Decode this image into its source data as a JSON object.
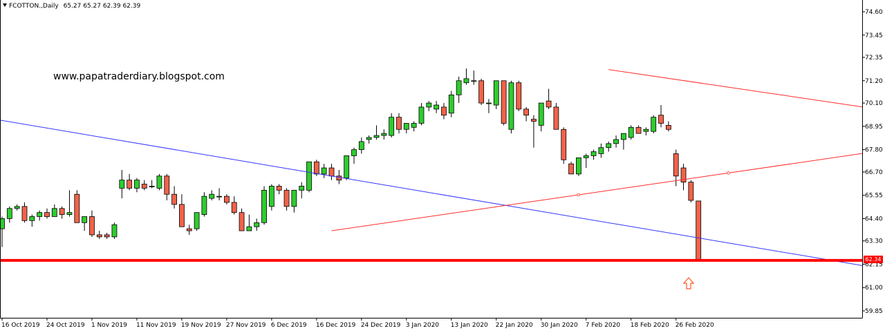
{
  "header": {
    "symbol_label": "FCOTTON.,Daily",
    "ohlc_label": "65.27 65.27 62.39 62.39"
  },
  "watermark": "www.papatraderdiary.blogspot.com",
  "price_tag": "62.34",
  "colors": {
    "bull": "#2ecc2e",
    "bear": "#f0634a",
    "wick": "#000000",
    "support": "#ff0000",
    "downtrend": "#3333ff",
    "triangle": "#ff2a2a",
    "arrow": "#ff5522",
    "axis": "#000000"
  },
  "icons": {
    "menu_indicator": "triangle-down-icon",
    "buy_signal": "up-arrow-icon"
  },
  "chart_data": {
    "type": "candlestick",
    "symbol": "FCOTTON.",
    "timeframe": "Daily",
    "y_ticks": [
      "74.60",
      "73.45",
      "72.35",
      "71.20",
      "70.10",
      "68.95",
      "67.80",
      "66.70",
      "65.55",
      "64.40",
      "63.30",
      "62.15",
      "61.00",
      "59.85"
    ],
    "ylim": [
      59.5,
      75.0
    ],
    "x_ticks": [
      {
        "label": "16 Oct 2019",
        "i": 0
      },
      {
        "label": "24 Oct 2019",
        "i": 6
      },
      {
        "label": "1 Nov 2019",
        "i": 12
      },
      {
        "label": "11 Nov 2019",
        "i": 18
      },
      {
        "label": "19 Nov 2019",
        "i": 24
      },
      {
        "label": "27 Nov 2019",
        "i": 30
      },
      {
        "label": "6 Dec 2019",
        "i": 36
      },
      {
        "label": "16 Dec 2019",
        "i": 42
      },
      {
        "label": "24 Dec 2019",
        "i": 48
      },
      {
        "label": "3 Jan 2020",
        "i": 54
      },
      {
        "label": "13 Jan 2020",
        "i": 60
      },
      {
        "label": "22 Jan 2020",
        "i": 66
      },
      {
        "label": "30 Jan 2020",
        "i": 72
      },
      {
        "label": "7 Feb 2020",
        "i": 78
      },
      {
        "label": "18 Feb 2020",
        "i": 84
      },
      {
        "label": "26 Feb 2020",
        "i": 90
      }
    ],
    "candles": [
      {
        "o": 63.9,
        "h": 64.5,
        "l": 63.0,
        "c": 64.4
      },
      {
        "o": 64.4,
        "h": 65.0,
        "l": 64.2,
        "c": 64.9
      },
      {
        "o": 64.9,
        "h": 65.1,
        "l": 64.8,
        "c": 65.0
      },
      {
        "o": 65.0,
        "h": 65.2,
        "l": 64.2,
        "c": 64.3
      },
      {
        "o": 64.3,
        "h": 64.6,
        "l": 64.0,
        "c": 64.5
      },
      {
        "o": 64.5,
        "h": 64.8,
        "l": 64.3,
        "c": 64.7
      },
      {
        "o": 64.7,
        "h": 64.9,
        "l": 64.4,
        "c": 64.5
      },
      {
        "o": 64.5,
        "h": 65.1,
        "l": 64.5,
        "c": 64.9
      },
      {
        "o": 64.9,
        "h": 65.0,
        "l": 64.4,
        "c": 64.6
      },
      {
        "o": 64.6,
        "h": 65.8,
        "l": 64.5,
        "c": 64.7
      },
      {
        "o": 65.6,
        "h": 65.8,
        "l": 64.2,
        "c": 64.2
      },
      {
        "o": 64.2,
        "h": 64.5,
        "l": 63.8,
        "c": 64.5
      },
      {
        "o": 64.5,
        "h": 64.8,
        "l": 63.5,
        "c": 63.6
      },
      {
        "o": 63.6,
        "h": 63.8,
        "l": 63.4,
        "c": 63.5
      },
      {
        "o": 63.6,
        "h": 63.7,
        "l": 63.4,
        "c": 63.5
      },
      {
        "o": 63.5,
        "h": 64.2,
        "l": 63.4,
        "c": 64.1
      },
      {
        "o": 65.9,
        "h": 66.8,
        "l": 65.4,
        "c": 66.3
      },
      {
        "o": 66.3,
        "h": 66.6,
        "l": 65.8,
        "c": 65.9
      },
      {
        "o": 65.9,
        "h": 66.4,
        "l": 65.7,
        "c": 66.3
      },
      {
        "o": 66.1,
        "h": 66.3,
        "l": 65.8,
        "c": 65.9
      },
      {
        "o": 66.0,
        "h": 66.3,
        "l": 65.9,
        "c": 66.0
      },
      {
        "o": 65.9,
        "h": 66.6,
        "l": 65.8,
        "c": 66.5
      },
      {
        "o": 66.5,
        "h": 66.6,
        "l": 65.3,
        "c": 65.6
      },
      {
        "o": 65.6,
        "h": 66.0,
        "l": 64.9,
        "c": 65.1
      },
      {
        "o": 65.1,
        "h": 65.6,
        "l": 64.0,
        "c": 64.0
      },
      {
        "o": 63.9,
        "h": 64.1,
        "l": 63.6,
        "c": 63.8
      },
      {
        "o": 63.9,
        "h": 64.7,
        "l": 63.8,
        "c": 64.7
      },
      {
        "o": 64.6,
        "h": 65.7,
        "l": 64.5,
        "c": 65.5
      },
      {
        "o": 65.4,
        "h": 65.8,
        "l": 65.3,
        "c": 65.6
      },
      {
        "o": 65.5,
        "h": 65.9,
        "l": 65.3,
        "c": 65.5
      },
      {
        "o": 65.5,
        "h": 65.6,
        "l": 65.1,
        "c": 65.2
      },
      {
        "o": 65.2,
        "h": 65.5,
        "l": 64.6,
        "c": 64.7
      },
      {
        "o": 64.7,
        "h": 64.9,
        "l": 63.8,
        "c": 63.8
      },
      {
        "o": 63.8,
        "h": 64.6,
        "l": 63.8,
        "c": 64.0
      },
      {
        "o": 64.0,
        "h": 64.4,
        "l": 63.8,
        "c": 64.2
      },
      {
        "o": 64.2,
        "h": 66.0,
        "l": 64.1,
        "c": 65.8
      },
      {
        "o": 65.0,
        "h": 66.1,
        "l": 64.8,
        "c": 66.0
      },
      {
        "o": 66.0,
        "h": 66.1,
        "l": 65.6,
        "c": 65.8
      },
      {
        "o": 65.8,
        "h": 65.9,
        "l": 64.8,
        "c": 65.0
      },
      {
        "o": 65.0,
        "h": 65.8,
        "l": 64.7,
        "c": 65.8
      },
      {
        "o": 65.8,
        "h": 66.2,
        "l": 65.4,
        "c": 66.0
      },
      {
        "o": 65.8,
        "h": 67.2,
        "l": 65.7,
        "c": 67.2
      },
      {
        "o": 67.2,
        "h": 67.3,
        "l": 66.5,
        "c": 66.6
      },
      {
        "o": 66.6,
        "h": 67.1,
        "l": 66.4,
        "c": 66.9
      },
      {
        "o": 66.9,
        "h": 67.1,
        "l": 66.3,
        "c": 66.5
      },
      {
        "o": 66.5,
        "h": 66.8,
        "l": 66.1,
        "c": 66.3
      },
      {
        "o": 66.4,
        "h": 67.5,
        "l": 66.3,
        "c": 67.5
      },
      {
        "o": 67.5,
        "h": 67.9,
        "l": 67.1,
        "c": 67.8
      },
      {
        "o": 67.8,
        "h": 68.4,
        "l": 67.6,
        "c": 68.2
      },
      {
        "o": 68.3,
        "h": 68.5,
        "l": 68.1,
        "c": 68.4
      },
      {
        "o": 68.4,
        "h": 69.0,
        "l": 68.3,
        "c": 68.5
      },
      {
        "o": 68.5,
        "h": 68.8,
        "l": 68.3,
        "c": 68.6
      },
      {
        "o": 68.5,
        "h": 69.6,
        "l": 68.4,
        "c": 69.4
      },
      {
        "o": 69.4,
        "h": 69.6,
        "l": 68.6,
        "c": 68.8
      },
      {
        "o": 68.8,
        "h": 69.1,
        "l": 68.6,
        "c": 69.1
      },
      {
        "o": 68.9,
        "h": 69.2,
        "l": 68.7,
        "c": 69.1
      },
      {
        "o": 69.1,
        "h": 70.1,
        "l": 69.0,
        "c": 69.9
      },
      {
        "o": 69.9,
        "h": 70.2,
        "l": 69.7,
        "c": 70.1
      },
      {
        "o": 69.8,
        "h": 70.2,
        "l": 69.6,
        "c": 70.0
      },
      {
        "o": 69.9,
        "h": 70.1,
        "l": 69.3,
        "c": 69.5
      },
      {
        "o": 69.6,
        "h": 70.7,
        "l": 69.4,
        "c": 70.5
      },
      {
        "o": 70.5,
        "h": 71.4,
        "l": 70.1,
        "c": 71.2
      },
      {
        "o": 71.1,
        "h": 71.8,
        "l": 71.0,
        "c": 71.3
      },
      {
        "o": 71.2,
        "h": 71.7,
        "l": 71.0,
        "c": 71.2
      },
      {
        "o": 71.2,
        "h": 71.3,
        "l": 70.0,
        "c": 70.1
      },
      {
        "o": 70.1,
        "h": 70.3,
        "l": 69.6,
        "c": 70.1
      },
      {
        "o": 70.0,
        "h": 71.2,
        "l": 69.8,
        "c": 71.2
      },
      {
        "o": 71.2,
        "h": 71.2,
        "l": 69.0,
        "c": 69.1
      },
      {
        "o": 68.8,
        "h": 71.2,
        "l": 68.6,
        "c": 71.1
      },
      {
        "o": 71.1,
        "h": 71.2,
        "l": 69.7,
        "c": 69.8
      },
      {
        "o": 69.8,
        "h": 69.9,
        "l": 69.2,
        "c": 69.5
      },
      {
        "o": 69.3,
        "h": 69.5,
        "l": 67.9,
        "c": 69.2
      },
      {
        "o": 69.0,
        "h": 70.1,
        "l": 68.7,
        "c": 70.1
      },
      {
        "o": 70.2,
        "h": 70.8,
        "l": 69.8,
        "c": 69.9
      },
      {
        "o": 69.9,
        "h": 70.1,
        "l": 68.8,
        "c": 68.8
      },
      {
        "o": 68.8,
        "h": 68.9,
        "l": 67.1,
        "c": 67.3
      },
      {
        "o": 67.1,
        "h": 67.2,
        "l": 66.6,
        "c": 66.6
      },
      {
        "o": 66.6,
        "h": 67.4,
        "l": 66.5,
        "c": 67.4
      },
      {
        "o": 67.4,
        "h": 67.6,
        "l": 66.9,
        "c": 67.5
      },
      {
        "o": 67.5,
        "h": 67.8,
        "l": 67.3,
        "c": 67.7
      },
      {
        "o": 67.6,
        "h": 68.1,
        "l": 67.4,
        "c": 67.9
      },
      {
        "o": 67.9,
        "h": 68.2,
        "l": 67.7,
        "c": 68.1
      },
      {
        "o": 68.1,
        "h": 68.5,
        "l": 67.9,
        "c": 68.3
      },
      {
        "o": 68.3,
        "h": 68.5,
        "l": 67.8,
        "c": 68.6
      },
      {
        "o": 68.4,
        "h": 69.0,
        "l": 68.3,
        "c": 68.9
      },
      {
        "o": 68.9,
        "h": 69.0,
        "l": 68.6,
        "c": 68.6
      },
      {
        "o": 68.7,
        "h": 68.9,
        "l": 68.5,
        "c": 68.8
      },
      {
        "o": 68.7,
        "h": 69.5,
        "l": 68.6,
        "c": 69.4
      },
      {
        "o": 69.5,
        "h": 70.0,
        "l": 68.9,
        "c": 69.1
      },
      {
        "o": 69.0,
        "h": 69.2,
        "l": 68.7,
        "c": 68.8
      },
      {
        "o": 67.6,
        "h": 67.8,
        "l": 66.0,
        "c": 66.5
      },
      {
        "o": 66.9,
        "h": 67.1,
        "l": 65.8,
        "c": 66.2
      },
      {
        "o": 66.2,
        "h": 66.3,
        "l": 65.2,
        "c": 65.3
      },
      {
        "o": 65.27,
        "h": 65.27,
        "l": 62.39,
        "c": 62.39
      }
    ],
    "lines": [
      {
        "name": "support",
        "y": 62.34
      },
      {
        "name": "downtrend",
        "from": {
          "i": -1,
          "y": 69.3
        },
        "to": {
          "i": 150,
          "y": 59.9
        }
      },
      {
        "name": "triangle-upper",
        "from": {
          "i": 81,
          "y": 71.75
        },
        "to": {
          "i": 150,
          "y": 68.0
        }
      },
      {
        "name": "triangle-lower",
        "from": {
          "i": 44,
          "y": 63.8
        },
        "to": {
          "i": 150,
          "y": 69.5
        }
      }
    ]
  }
}
